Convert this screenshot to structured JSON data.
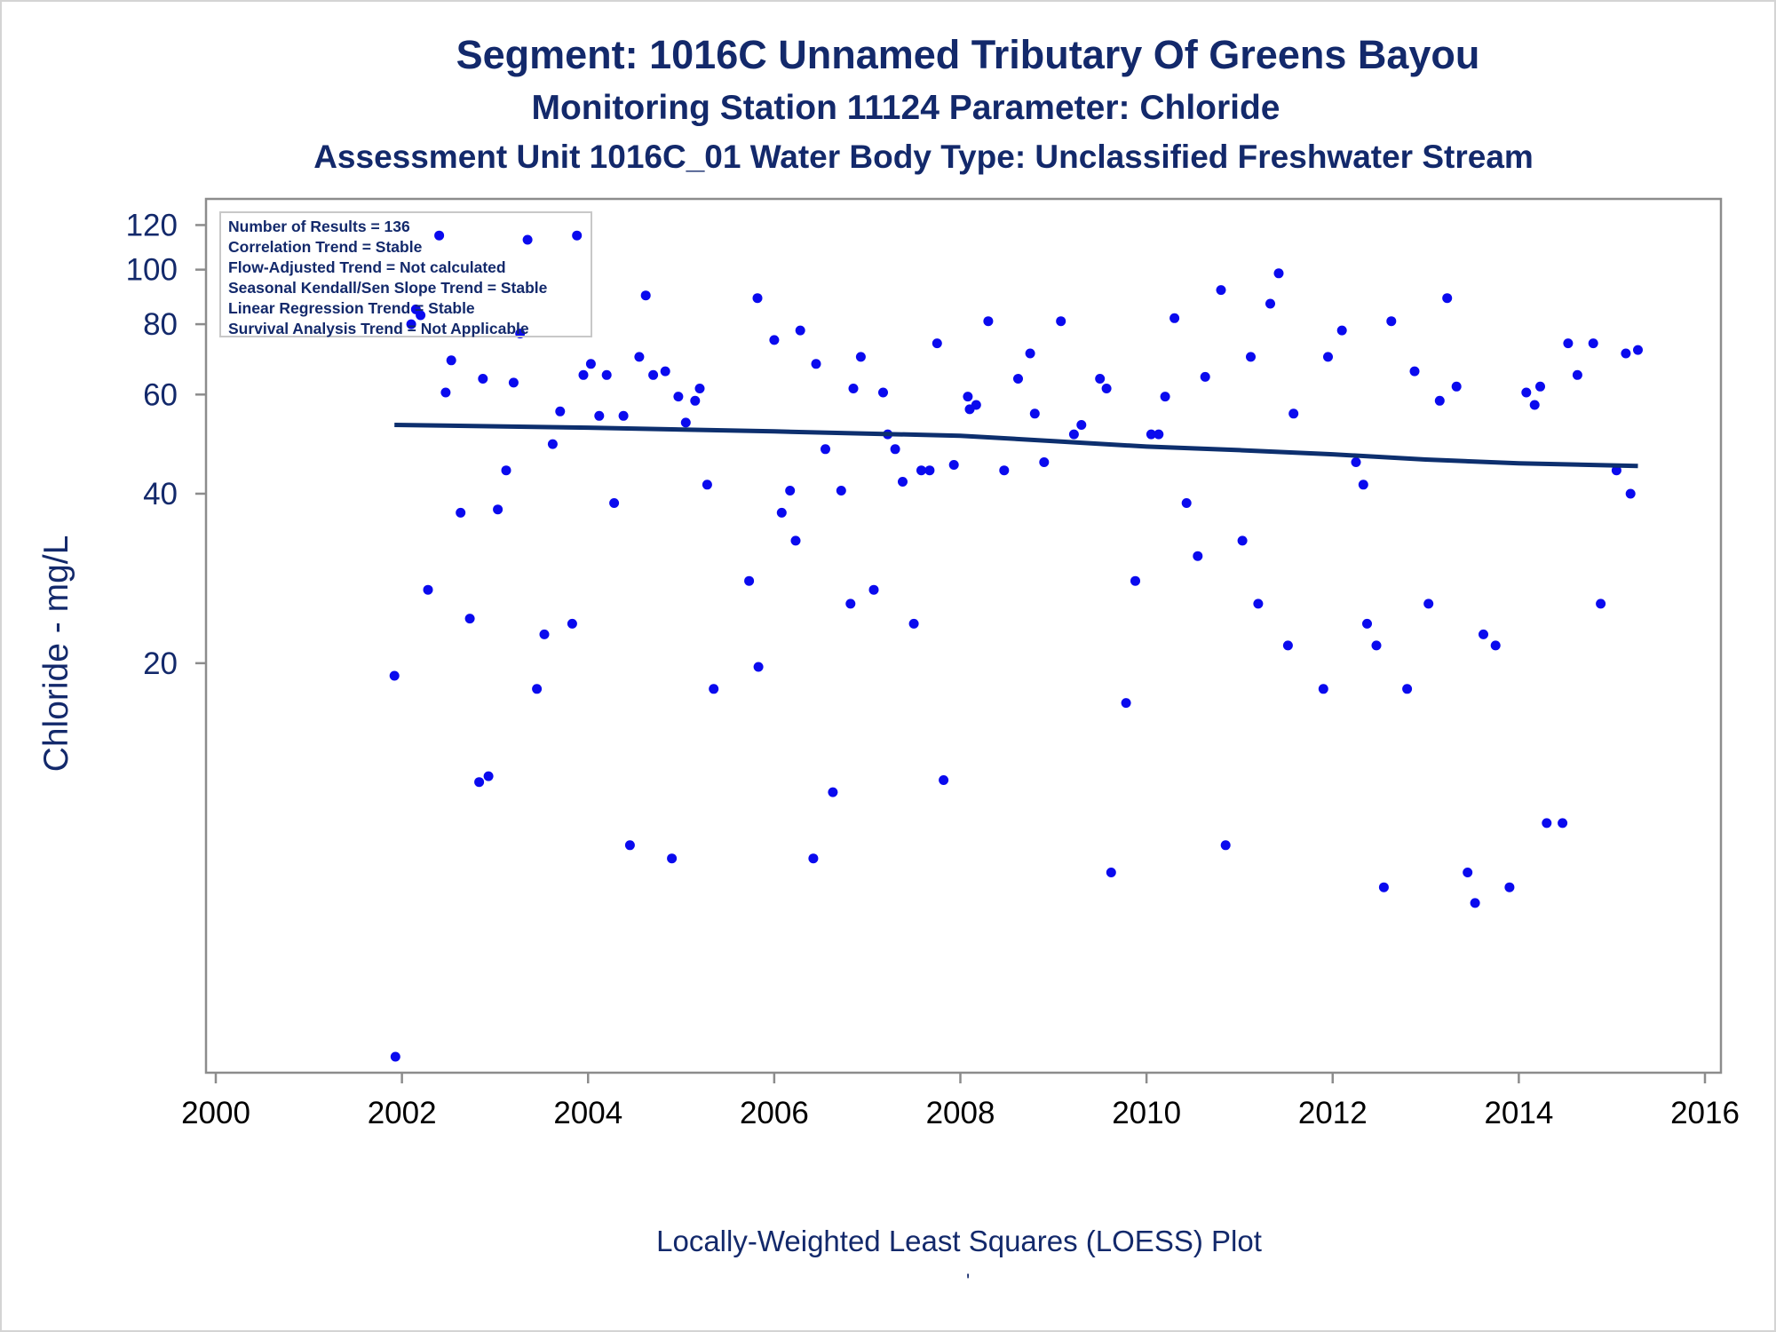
{
  "chart_data": {
    "type": "scatter",
    "title": "Segment: 1016C  Unnamed Tributary Of Greens Bayou",
    "subtitle": "Monitoring Station 11124 Parameter: Chloride",
    "subtitle2": "Assessment Unit 1016C_01   Water Body Type: Unclassified Freshwater Stream",
    "ylabel": "Chloride - mg/L",
    "xlabel": "",
    "footnote": "Locally-Weighted Least Squares (LOESS) Plot",
    "footnote_mark": "'",
    "x_scale": "linear (year)",
    "y_scale": "log",
    "xlim": [
      2000,
      2016
    ],
    "ylim": [
      3.9,
      126
    ],
    "x_ticks": [
      2000,
      2002,
      2004,
      2006,
      2008,
      2010,
      2012,
      2014,
      2016
    ],
    "x_tick_labels": [
      "2000",
      "2002",
      "2004",
      "2006",
      "2008",
      "2010",
      "2012",
      "2014",
      "2016"
    ],
    "y_ticks": [
      20,
      40,
      60,
      80,
      100,
      120
    ],
    "y_tick_labels": [
      "20",
      "40",
      "60",
      "80",
      "100",
      "120"
    ],
    "grid": false,
    "stats_box": [
      "Number of Results = 136",
      "Correlation Trend = Stable",
      "Flow-Adjusted Trend = Not calculated",
      "Seasonal Kendall/Sen Slope Trend = Stable",
      "Linear Regression Trend = Stable",
      "Survival Analysis Trend = Not Applicable"
    ],
    "stats_box_placement": "top-left",
    "colors": {
      "points": "#0a0aee",
      "trend": "#0d2f6e",
      "text": "#13296b",
      "axis": "#8c8c8c"
    },
    "series": [
      {
        "type": "scatter",
        "points": [
          [
            2001.92,
            19
          ],
          [
            2001.93,
            4.0
          ],
          [
            2002.1,
            80
          ],
          [
            2002.15,
            85
          ],
          [
            2002.2,
            83
          ],
          [
            2002.28,
            27
          ],
          [
            2002.4,
            115
          ],
          [
            2002.47,
            60.5
          ],
          [
            2002.53,
            69
          ],
          [
            2002.63,
            37
          ],
          [
            2002.73,
            24
          ],
          [
            2002.83,
            12.3
          ],
          [
            2002.87,
            64
          ],
          [
            2002.93,
            12.6
          ],
          [
            2003.03,
            37.5
          ],
          [
            2003.12,
            44
          ],
          [
            2003.2,
            63
          ],
          [
            2003.27,
            77
          ],
          [
            2003.35,
            113
          ],
          [
            2003.45,
            18
          ],
          [
            2003.53,
            22.5
          ],
          [
            2003.62,
            49
          ],
          [
            2003.7,
            56
          ],
          [
            2003.83,
            23.5
          ],
          [
            2003.88,
            115
          ],
          [
            2003.95,
            65
          ],
          [
            2004.03,
            68
          ],
          [
            2004.12,
            55
          ],
          [
            2004.2,
            65
          ],
          [
            2004.28,
            38.5
          ],
          [
            2004.38,
            55
          ],
          [
            2004.45,
            9.5
          ],
          [
            2004.55,
            70
          ],
          [
            2004.62,
            90
          ],
          [
            2004.7,
            65
          ],
          [
            2004.83,
            66
          ],
          [
            2004.9,
            9.0
          ],
          [
            2004.97,
            59.5
          ],
          [
            2005.05,
            53.5
          ],
          [
            2005.15,
            58.5
          ],
          [
            2005.2,
            61.5
          ],
          [
            2005.28,
            41.5
          ],
          [
            2005.35,
            18
          ],
          [
            2005.73,
            28
          ],
          [
            2005.82,
            89
          ],
          [
            2005.83,
            19.7
          ],
          [
            2006.0,
            75
          ],
          [
            2006.08,
            37
          ],
          [
            2006.17,
            40.5
          ],
          [
            2006.23,
            33
          ],
          [
            2006.28,
            78
          ],
          [
            2006.42,
            9.0
          ],
          [
            2006.45,
            68
          ],
          [
            2006.55,
            48
          ],
          [
            2006.63,
            11.8
          ],
          [
            2006.72,
            40.5
          ],
          [
            2006.82,
            25.5
          ],
          [
            2006.85,
            61.5
          ],
          [
            2006.93,
            70
          ],
          [
            2007.07,
            27
          ],
          [
            2007.17,
            60.5
          ],
          [
            2007.22,
            51
          ],
          [
            2007.3,
            48
          ],
          [
            2007.38,
            42
          ],
          [
            2007.5,
            23.5
          ],
          [
            2007.58,
            44
          ],
          [
            2007.67,
            44
          ],
          [
            2007.75,
            74
          ],
          [
            2007.82,
            12.4
          ],
          [
            2007.93,
            45
          ],
          [
            2008.08,
            59.5
          ],
          [
            2008.1,
            56.5
          ],
          [
            2008.17,
            57.5
          ],
          [
            2008.3,
            81
          ],
          [
            2008.47,
            44
          ],
          [
            2008.62,
            64
          ],
          [
            2008.75,
            71
          ],
          [
            2008.8,
            55.5
          ],
          [
            2008.9,
            45.5
          ],
          [
            2009.08,
            81
          ],
          [
            2009.22,
            51
          ],
          [
            2009.3,
            53
          ],
          [
            2009.5,
            64
          ],
          [
            2009.57,
            61.5
          ],
          [
            2009.62,
            8.5
          ],
          [
            2009.78,
            17
          ],
          [
            2009.88,
            28
          ],
          [
            2010.05,
            51
          ],
          [
            2010.13,
            51
          ],
          [
            2010.2,
            59.5
          ],
          [
            2010.3,
            82
          ],
          [
            2010.43,
            38.5
          ],
          [
            2010.55,
            31
          ],
          [
            2010.63,
            64.5
          ],
          [
            2010.8,
            92
          ],
          [
            2010.85,
            9.5
          ],
          [
            2011.03,
            33
          ],
          [
            2011.12,
            70
          ],
          [
            2011.2,
            25.5
          ],
          [
            2011.33,
            87
          ],
          [
            2011.42,
            98.5
          ],
          [
            2011.52,
            21.5
          ],
          [
            2011.58,
            55.5
          ],
          [
            2011.9,
            18
          ],
          [
            2011.95,
            70
          ],
          [
            2012.1,
            78
          ],
          [
            2012.25,
            45.5
          ],
          [
            2012.33,
            41.5
          ],
          [
            2012.37,
            23.5
          ],
          [
            2012.47,
            21.5
          ],
          [
            2012.55,
            8.0
          ],
          [
            2012.63,
            81
          ],
          [
            2012.8,
            18
          ],
          [
            2012.88,
            66
          ],
          [
            2013.03,
            25.5
          ],
          [
            2013.15,
            58.5
          ],
          [
            2013.23,
            89
          ],
          [
            2013.33,
            62
          ],
          [
            2013.45,
            8.5
          ],
          [
            2013.53,
            7.5
          ],
          [
            2013.62,
            22.5
          ],
          [
            2013.75,
            21.5
          ],
          [
            2013.9,
            8.0
          ],
          [
            2014.08,
            60.5
          ],
          [
            2014.17,
            57.5
          ],
          [
            2014.23,
            62
          ],
          [
            2014.3,
            10.4
          ],
          [
            2014.47,
            10.4
          ],
          [
            2014.53,
            74
          ],
          [
            2014.63,
            65
          ],
          [
            2014.8,
            74
          ],
          [
            2014.88,
            25.5
          ],
          [
            2015.05,
            44
          ],
          [
            2015.15,
            71
          ],
          [
            2015.2,
            40
          ],
          [
            2015.28,
            72
          ]
        ]
      },
      {
        "type": "line",
        "points": [
          [
            2001.92,
            53
          ],
          [
            2004,
            52.4
          ],
          [
            2006,
            51.6
          ],
          [
            2008,
            50.7
          ],
          [
            2009,
            49.6
          ],
          [
            2010,
            48.5
          ],
          [
            2011,
            47.8
          ],
          [
            2012,
            47
          ],
          [
            2013,
            46
          ],
          [
            2014,
            45.3
          ],
          [
            2015.28,
            44.8
          ]
        ]
      }
    ]
  }
}
